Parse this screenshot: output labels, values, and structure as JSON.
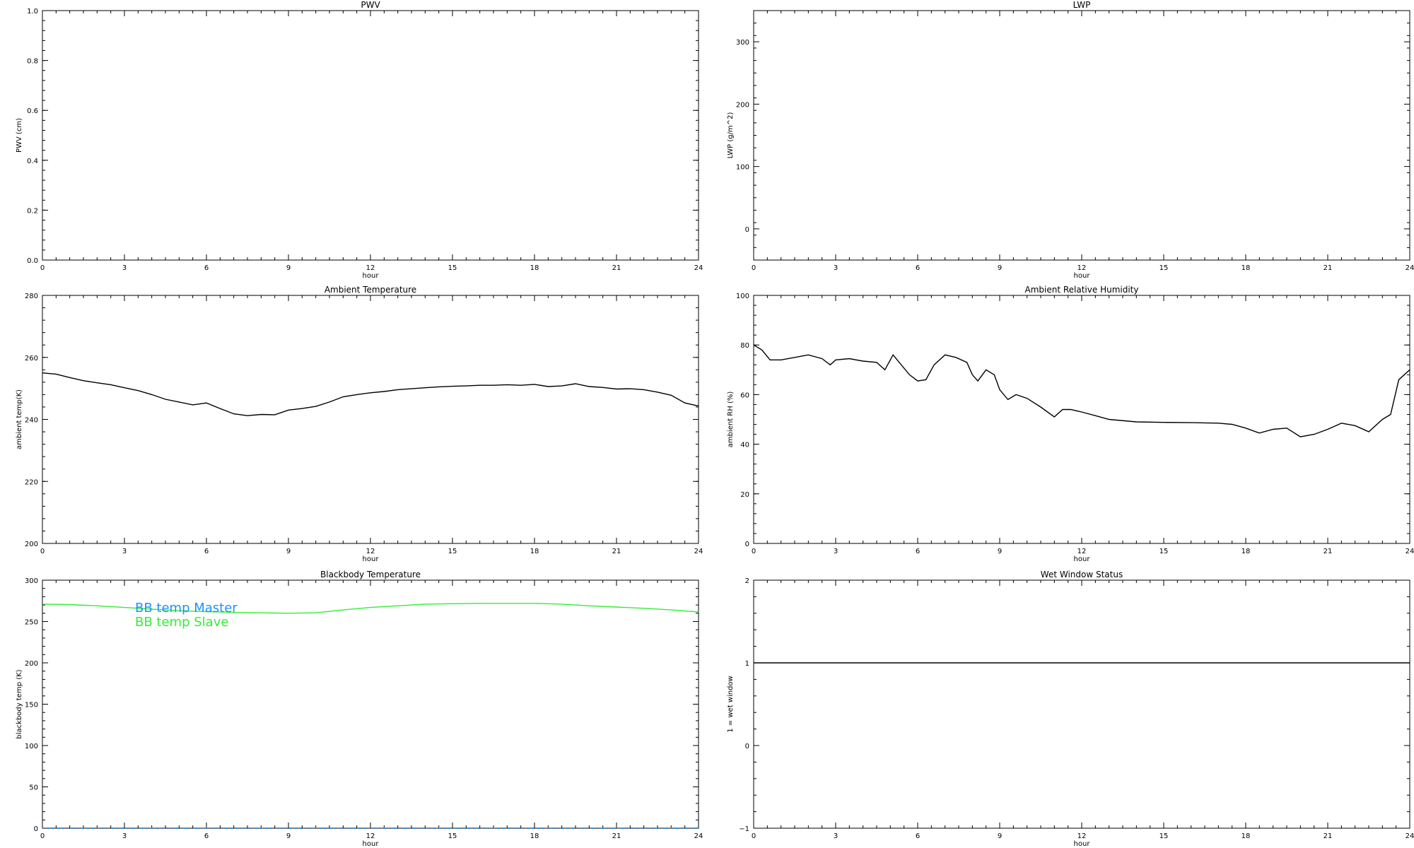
{
  "chart_data": [
    {
      "type": "line",
      "title": "PWV",
      "xlabel": "hour",
      "ylabel": "PWV (cm)",
      "xlim": [
        0,
        24
      ],
      "ylim": [
        0,
        1
      ],
      "xticks": [
        "0",
        "3",
        "6",
        "9",
        "12",
        "15",
        "18",
        "21",
        "24"
      ],
      "yticks": [
        "0.0",
        "0.2",
        "0.4",
        "0.6",
        "0.8",
        "1.0"
      ],
      "series": []
    },
    {
      "type": "line",
      "title": "LWP",
      "xlabel": "hour",
      "ylabel": "LWP (g/m^2)",
      "xlim": [
        0,
        24
      ],
      "ylim": [
        -50,
        350
      ],
      "xticks": [
        "0",
        "3",
        "6",
        "9",
        "12",
        "15",
        "18",
        "21",
        "24"
      ],
      "yticks": [
        "0",
        "100",
        "200",
        "300"
      ],
      "series": []
    },
    {
      "type": "line",
      "title": "Ambient Temperature",
      "xlabel": "hour",
      "ylabel": "ambient temp(K)",
      "xlim": [
        0,
        24
      ],
      "ylim": [
        200,
        280
      ],
      "xticks": [
        "0",
        "3",
        "6",
        "9",
        "12",
        "15",
        "18",
        "21",
        "24"
      ],
      "yticks": [
        "200",
        "220",
        "240",
        "260",
        "280"
      ],
      "series": [
        {
          "color": "#000000",
          "x": [
            0,
            0.5,
            1,
            1.5,
            2,
            2.5,
            3,
            3.5,
            4,
            4.5,
            5,
            5.5,
            6,
            6.5,
            7,
            7.5,
            8,
            8.5,
            9,
            9.5,
            10,
            10.5,
            11,
            11.5,
            12,
            12.5,
            13,
            13.5,
            14,
            14.5,
            15,
            15.5,
            16,
            16.5,
            17,
            17.5,
            18,
            18.5,
            19,
            19.5,
            20,
            20.5,
            21,
            21.5,
            22,
            22.5,
            23,
            23.5,
            24
          ],
          "y": [
            255,
            254.6,
            253.5,
            252.5,
            251.8,
            251.2,
            250.2,
            249.3,
            248,
            246.5,
            245.6,
            244.7,
            245.3,
            243.5,
            241.8,
            241.2,
            241.6,
            241.5,
            243,
            243.5,
            244.2,
            245.6,
            247.3,
            248,
            248.6,
            249,
            249.6,
            249.9,
            250.2,
            250.5,
            250.7,
            250.8,
            251,
            251,
            251.2,
            251,
            251.3,
            250.6,
            250.8,
            251.5,
            250.6,
            250.3,
            249.8,
            249.9,
            249.6,
            248.8,
            247.8,
            245.3,
            244.3
          ]
        }
      ]
    },
    {
      "type": "line",
      "title": "Ambient Relative Humidity",
      "xlabel": "hour",
      "ylabel": "ambient RH (%)",
      "xlim": [
        0,
        24
      ],
      "ylim": [
        0,
        100
      ],
      "xticks": [
        "0",
        "3",
        "6",
        "9",
        "12",
        "15",
        "18",
        "21",
        "24"
      ],
      "yticks": [
        "0",
        "20",
        "40",
        "60",
        "80",
        "100"
      ],
      "series": [
        {
          "color": "#000000",
          "x": [
            0,
            0.3,
            0.6,
            1,
            1.5,
            2,
            2.5,
            2.8,
            3,
            3.5,
            4,
            4.5,
            4.8,
            5.1,
            5.4,
            5.7,
            6,
            6.3,
            6.6,
            7,
            7.4,
            7.8,
            8,
            8.2,
            8.5,
            8.8,
            9,
            9.3,
            9.6,
            10,
            10.5,
            11,
            11.3,
            11.6,
            12,
            12.5,
            13,
            14,
            15,
            16,
            17,
            17.5,
            18,
            18.5,
            19,
            19.5,
            20,
            20.5,
            21,
            21.5,
            22,
            22.5,
            23,
            23.3,
            23.6,
            24
          ],
          "y": [
            80,
            78,
            74,
            74,
            75,
            76,
            74.5,
            72,
            74,
            74.5,
            73.5,
            73,
            70,
            76,
            72,
            68,
            65.5,
            66,
            72,
            76,
            75,
            73,
            68,
            65.5,
            70,
            68,
            62,
            58,
            60,
            58.5,
            55,
            51,
            54,
            54,
            53,
            51.5,
            50,
            49,
            48.8,
            48.7,
            48.5,
            48,
            46.5,
            44.5,
            46,
            46.5,
            43,
            44,
            46,
            48.5,
            47.5,
            45,
            50,
            52,
            66,
            70
          ]
        }
      ]
    },
    {
      "type": "line",
      "title": "Blackbody Temperature",
      "xlabel": "hour",
      "ylabel": "blackbody temp (K)",
      "xlim": [
        0,
        24
      ],
      "ylim": [
        0,
        300
      ],
      "xticks": [
        "0",
        "3",
        "6",
        "9",
        "12",
        "15",
        "18",
        "21",
        "24"
      ],
      "yticks": [
        "0",
        "50",
        "100",
        "150",
        "200",
        "250",
        "300"
      ],
      "legend": "top-left",
      "series": [
        {
          "name": "BB temp Master",
          "color": "#1e90ff",
          "dotted": true,
          "x": [
            0,
            24
          ],
          "y": [
            0,
            0
          ]
        },
        {
          "name": "BB temp Slave",
          "color": "#33ee33",
          "x": [
            0,
            1,
            2,
            3,
            4,
            5,
            6,
            7,
            8,
            9,
            10,
            11,
            12,
            13,
            14,
            15,
            16,
            17,
            18,
            19,
            20,
            21,
            22,
            23,
            24
          ],
          "y": [
            271,
            270.5,
            269,
            267,
            265,
            263,
            262,
            261,
            260.5,
            260,
            260.5,
            264,
            267,
            269,
            271,
            271.5,
            272,
            272,
            272,
            271,
            269,
            267.5,
            266,
            264,
            261.5
          ]
        }
      ]
    },
    {
      "type": "line",
      "title": "Wet Window Status",
      "xlabel": "hour",
      "ylabel": "1 = wet window",
      "xlim": [
        0,
        24
      ],
      "ylim": [
        -1,
        2
      ],
      "xticks": [
        "0",
        "3",
        "6",
        "9",
        "12",
        "15",
        "18",
        "21",
        "24"
      ],
      "yticks": [
        "−1",
        "0",
        "1",
        "2"
      ],
      "series": [
        {
          "color": "#000000",
          "x": [
            0,
            24
          ],
          "y": [
            1,
            1
          ]
        }
      ]
    }
  ]
}
